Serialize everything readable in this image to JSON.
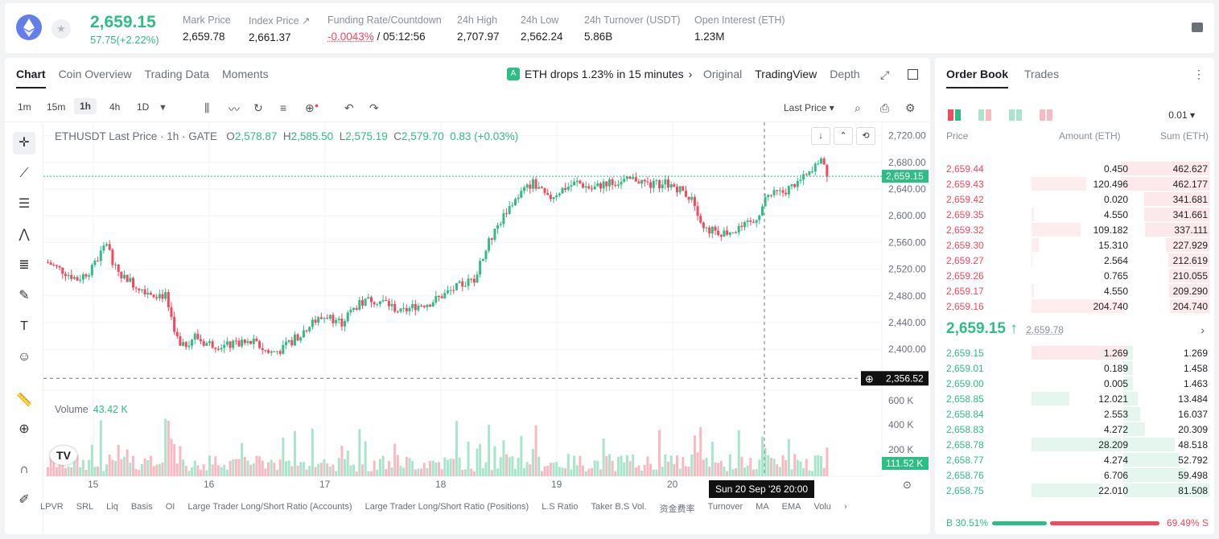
{
  "header": {
    "price": "2,659.15",
    "change": "57.75(+2.22%)",
    "stats": [
      {
        "label": "Mark Price",
        "value": "2,659.78"
      },
      {
        "label": "Index Price ↗",
        "value": "2,661.37"
      },
      {
        "label": "Funding Rate/Countdown",
        "value_red": "-0.0043%",
        "value": " / 05:12:56"
      },
      {
        "label": "24h High",
        "value": "2,707.97"
      },
      {
        "label": "24h Low",
        "value": "2,562.24"
      },
      {
        "label": "24h Turnover (USDT)",
        "value": "5.86B"
      },
      {
        "label": "Open Interest (ETH)",
        "value": "1.23M"
      }
    ]
  },
  "chart_tabs": [
    "Chart",
    "Coin Overview",
    "Trading Data",
    "Moments"
  ],
  "alert": "ETH drops 1.23% in 15 minutes",
  "view_options": [
    "Original",
    "TradingView",
    "Depth"
  ],
  "timeframes": [
    "1m",
    "15m",
    "1h",
    "4h",
    "1D"
  ],
  "price_type": "Last Price ▾",
  "legend": {
    "symbol": "ETHUSDT Last Price · 1h · GATE",
    "o": "2,578.87",
    "h": "2,585.50",
    "l": "2,575.19",
    "c": "2,579.70",
    "chg": "0.83 (+0.03%)"
  },
  "volume": {
    "label": "Volume",
    "value": "43.42 K"
  },
  "crosshair": {
    "price": "2,356.52",
    "time": "Sun 20 Sep '26   20:00",
    "vol": "111.52 K"
  },
  "indicators": [
    "LPVR",
    "SRL",
    "Liq",
    "Basis",
    "OI",
    "Large Trader Long/Short Ratio (Accounts)",
    "Large Trader Long/Short Ratio (Positions)",
    "L.S Ratio",
    "Taker B.S Vol.",
    "资金费率",
    "Turnover",
    "MA",
    "EMA",
    "Volu"
  ],
  "chart_data": {
    "type": "candlestick",
    "title": "ETHUSDT Last Price · 1h · GATE",
    "y_ticks": [
      "2,720.00",
      "2,680.00",
      "2,640.00",
      "2,600.00",
      "2,560.00",
      "2,520.00",
      "2,480.00",
      "2,440.00",
      "2,400.00"
    ],
    "vol_ticks": [
      "600 K",
      "400 K",
      "200 K"
    ],
    "x_ticks": [
      "15",
      "16",
      "17",
      "18",
      "19",
      "20"
    ],
    "ylim": [
      2340,
      2740
    ],
    "last_price": 2659.15,
    "keypoints": [
      [
        0,
        2530
      ],
      [
        10,
        2505
      ],
      [
        15,
        2520
      ],
      [
        20,
        2560
      ],
      [
        23,
        2520
      ],
      [
        30,
        2495
      ],
      [
        35,
        2485
      ],
      [
        40,
        2480
      ],
      [
        45,
        2400
      ],
      [
        50,
        2420
      ],
      [
        53,
        2410
      ],
      [
        60,
        2405
      ],
      [
        70,
        2410
      ],
      [
        75,
        2395
      ],
      [
        80,
        2400
      ],
      [
        85,
        2420
      ],
      [
        90,
        2440
      ],
      [
        95,
        2450
      ],
      [
        100,
        2440
      ],
      [
        105,
        2465
      ],
      [
        110,
        2475
      ],
      [
        115,
        2470
      ],
      [
        120,
        2455
      ],
      [
        125,
        2465
      ],
      [
        130,
        2470
      ],
      [
        140,
        2495
      ],
      [
        145,
        2505
      ],
      [
        150,
        2560
      ],
      [
        155,
        2600
      ],
      [
        160,
        2630
      ],
      [
        165,
        2650
      ],
      [
        170,
        2625
      ],
      [
        175,
        2640
      ],
      [
        180,
        2650
      ],
      [
        185,
        2640
      ],
      [
        190,
        2650
      ],
      [
        195,
        2650
      ],
      [
        200,
        2655
      ],
      [
        205,
        2645
      ],
      [
        210,
        2650
      ],
      [
        215,
        2640
      ],
      [
        220,
        2620
      ],
      [
        223,
        2580
      ],
      [
        230,
        2575
      ],
      [
        235,
        2580
      ],
      [
        240,
        2590
      ],
      [
        245,
        2630
      ],
      [
        250,
        2635
      ],
      [
        255,
        2650
      ],
      [
        260,
        2665
      ],
      [
        263,
        2690
      ],
      [
        265,
        2665
      ]
    ]
  },
  "orderbook": {
    "tabs": [
      "Order Book",
      "Trades"
    ],
    "tick": "0.01 ▾",
    "headers": [
      "Price",
      "Amount (ETH)",
      "Sum (ETH)"
    ],
    "asks": [
      [
        "2,659.44",
        "0.450",
        "462.627"
      ],
      [
        "2,659.43",
        "120.496",
        "462.177"
      ],
      [
        "2,659.42",
        "0.020",
        "341.681"
      ],
      [
        "2,659.35",
        "4.550",
        "341.661"
      ],
      [
        "2,659.32",
        "109.182",
        "337.111"
      ],
      [
        "2,659.30",
        "15.310",
        "227.929"
      ],
      [
        "2,659.27",
        "2.564",
        "212.619"
      ],
      [
        "2,659.26",
        "0.765",
        "210.055"
      ],
      [
        "2,659.17",
        "4.550",
        "209.290"
      ],
      [
        "2,659.16",
        "204.740",
        "204.740"
      ]
    ],
    "mid_price": "2,659.15 ↑",
    "mid_mark": "2,659.78",
    "bids": [
      [
        "2,659.15",
        "1.269",
        "1.269"
      ],
      [
        "2,659.01",
        "0.189",
        "1.458"
      ],
      [
        "2,659.00",
        "0.005",
        "1.463"
      ],
      [
        "2,658.85",
        "12.021",
        "13.484"
      ],
      [
        "2,658.84",
        "2.553",
        "16.037"
      ],
      [
        "2,658.83",
        "4.272",
        "20.309"
      ],
      [
        "2,658.78",
        "28.209",
        "48.518"
      ],
      [
        "2,658.77",
        "4.274",
        "52.792"
      ],
      [
        "2,658.76",
        "6.706",
        "59.498"
      ],
      [
        "2,658.75",
        "22.010",
        "81.508"
      ]
    ],
    "buy_ratio": "B 30.51%",
    "sell_ratio": "69.49% S",
    "colors": {
      "green": "#2ebd85",
      "red": "#f5475d"
    }
  }
}
